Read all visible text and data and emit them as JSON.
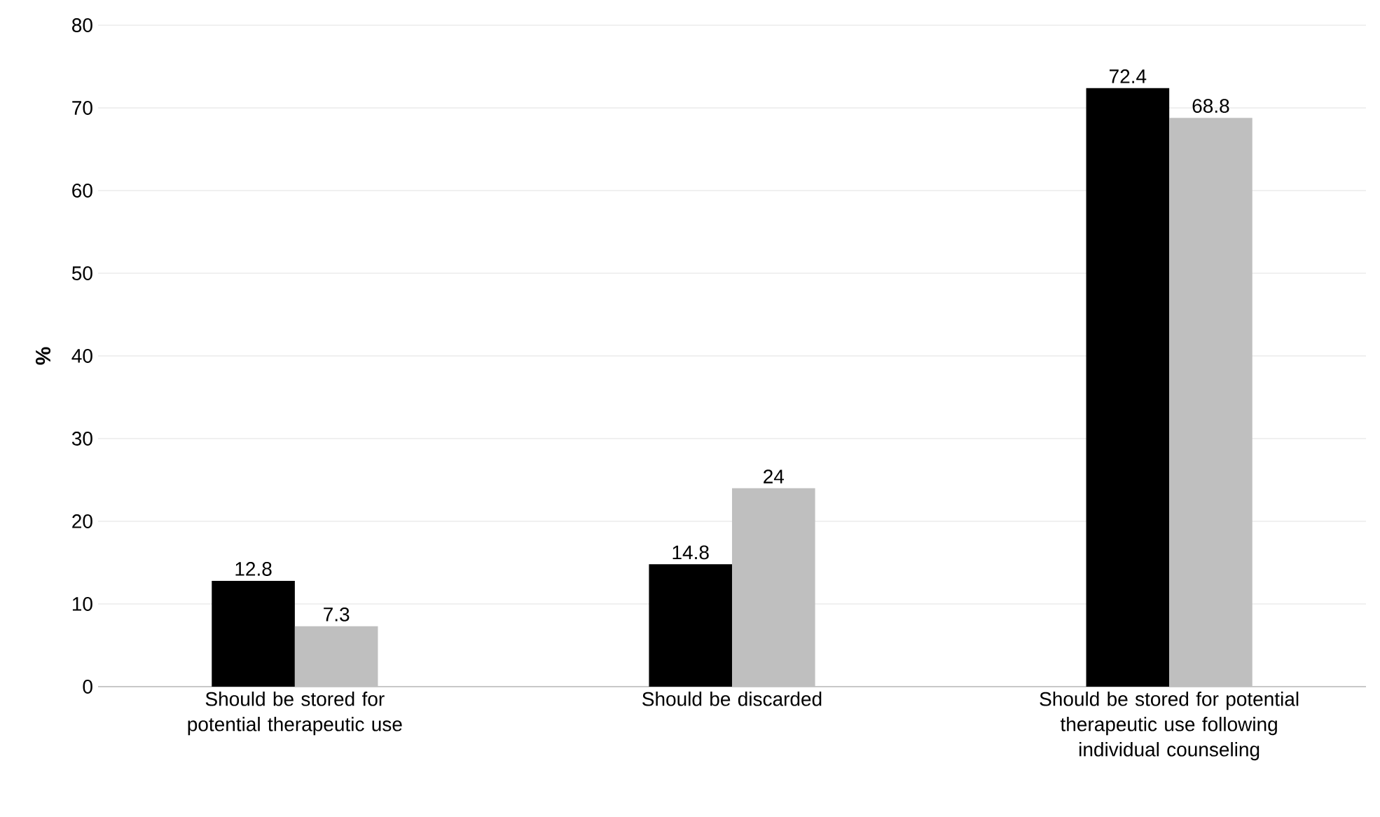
{
  "chart_data": {
    "type": "bar",
    "ylabel": "%",
    "categories": [
      "Should be stored for potential therapeutic use",
      "Should be discarded",
      "Should be stored for potential therapeutic use following individual counseling"
    ],
    "series": [
      {
        "color": "#000000",
        "values": [
          12.8,
          14.8,
          72.4
        ]
      },
      {
        "color": "#bfbfbf",
        "values": [
          7.3,
          24,
          68.8
        ]
      }
    ],
    "ylim": [
      0,
      80
    ],
    "yticks": [
      0,
      10,
      20,
      30,
      40,
      50,
      60,
      70,
      80
    ],
    "grid": "y",
    "data_labels": true
  }
}
